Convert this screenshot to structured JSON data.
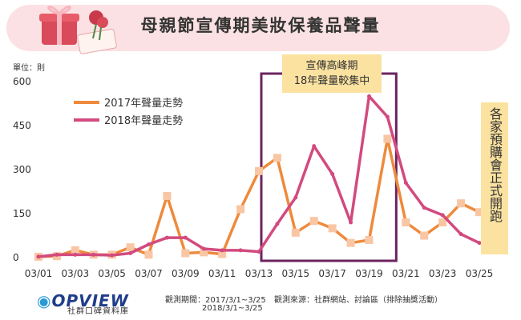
{
  "title": "母親節宣傳期美妝保養品聲量",
  "unit_label": "單位：則",
  "callout_top": [
    "宣傳高峰期",
    "18年聲量較集中"
  ],
  "callout_side": "各家預購會正式開跑",
  "footer": {
    "logo": "OPVIEW",
    "logo_sub": "社群口碑資料庫",
    "period": "觀測期間：2017/3/1~3/25",
    "period2": "2018/3/1~3/25",
    "source": "觀測來源：社群網站、討論區（排除抽獎活動）"
  },
  "colors": {
    "series_2017": "#ee8a3c",
    "series_2018": "#d24a7e",
    "marker_2017": "#f9c6a4",
    "highlight_box": "#6b2460",
    "callout_bg": "#fbe2a0",
    "banner_bg": "#fbe1e3"
  },
  "chart_data": {
    "type": "line",
    "title": "母親節宣傳期美妝保養品聲量",
    "ylabel": "單位：則",
    "ylim": [
      0,
      600
    ],
    "yticks": [
      "0",
      "150",
      "300",
      "450",
      "600"
    ],
    "x": [
      "03/01",
      "03/02",
      "03/03",
      "03/04",
      "03/05",
      "03/06",
      "03/07",
      "03/08",
      "03/09",
      "03/10",
      "03/11",
      "03/12",
      "03/13",
      "03/14",
      "03/15",
      "03/16",
      "03/17",
      "03/18",
      "03/19",
      "03/20",
      "03/21",
      "03/22",
      "03/23",
      "03/24",
      "03/25"
    ],
    "xtick_labels": [
      "03/01",
      "03/03",
      "03/05",
      "03/07",
      "03/09",
      "03/11",
      "03/13",
      "03/15",
      "03/17",
      "03/19",
      "03/21",
      "03/23",
      "03/25"
    ],
    "legend_position": "top-left",
    "series": [
      {
        "name": "2017年聲量走勢",
        "values": [
          3,
          5,
          25,
          10,
          10,
          35,
          10,
          210,
          15,
          18,
          12,
          165,
          295,
          340,
          85,
          125,
          100,
          50,
          60,
          405,
          120,
          75,
          120,
          185,
          155
        ]
      },
      {
        "name": "2018年聲量走勢",
        "values": [
          3,
          10,
          10,
          10,
          8,
          15,
          45,
          68,
          68,
          30,
          25,
          25,
          20,
          115,
          205,
          380,
          285,
          120,
          550,
          480,
          255,
          170,
          145,
          80,
          50
        ]
      }
    ],
    "highlight_range": [
      "03/13",
      "03/21"
    ]
  }
}
